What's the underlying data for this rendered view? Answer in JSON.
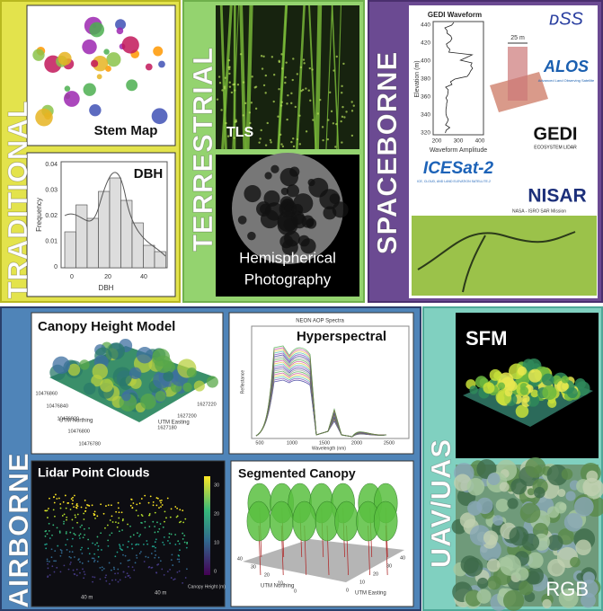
{
  "traditional": {
    "label": "TRADITIONAL",
    "stem_map": {
      "title": "Stem Map"
    },
    "dbh": {
      "title": "DBH",
      "y_label": "Frequency",
      "x_label": "DBH",
      "yticks": [
        "0.04",
        "0.03",
        "0.02",
        "0.01",
        "0"
      ],
      "xticks": [
        "0",
        "20",
        "40"
      ]
    }
  },
  "terrestrial": {
    "label": "TERRESTRIAL",
    "tls": "TLS",
    "hemi": [
      "Hemispherical",
      "Photography"
    ]
  },
  "spaceborne": {
    "label": "SPACEBORNE",
    "gedi_plot": {
      "title": "GEDI Waveform",
      "y_label": "Elevation (m)",
      "x_label": "Waveform Amplitude",
      "yticks": [
        "440",
        "420",
        "400",
        "380",
        "360",
        "340",
        "320"
      ],
      "xticks": [
        "200",
        "300",
        "400"
      ],
      "scale": "25 m"
    },
    "logos": {
      "alos": "ALOS",
      "alos_sub": "Advanced Land Observing Satellite",
      "gedi": "GEDI",
      "gedi_sub": "ECOSYSTEM LIDAR",
      "icesat": "ICESat-2",
      "icesat_sub": "ICE, CLOUD, AND LAND ELEVATION SATELLITE-2",
      "nisar": "NISAR",
      "nisar_sub": "NASA - ISRO SAR Mission"
    }
  },
  "airborne": {
    "label": "AIRBORNE",
    "chm": {
      "title": "Canopy Height Model",
      "northing_ticks": [
        "10476860",
        "10476840",
        "10476820",
        "10476800",
        "10476780"
      ],
      "northing_label": "UTM Northing",
      "easting_ticks": [
        "1627220",
        "1627200",
        "1627180"
      ],
      "easting_label": "UTM Easting"
    },
    "hyper": {
      "title": "Hyperspectral",
      "subtitle": "NEON AOP Spectra",
      "y_label": "Reflectance",
      "x_label": "Wavelength (nm)",
      "xticks": [
        "500",
        "1000",
        "1500",
        "2000",
        "2500"
      ]
    },
    "lidar": {
      "title": "Lidar Point Clouds",
      "dist": [
        "40 m",
        "40 m"
      ],
      "bar_label": "Canopy Height (m)",
      "bar_ticks": [
        "30",
        "20",
        "10",
        "0"
      ]
    },
    "seg": {
      "title": "Segmented Canopy",
      "northing_label": "UTM Northing",
      "easting_label": "UTM Easting",
      "n_ticks": [
        "40",
        "30",
        "20",
        "10",
        "0"
      ],
      "e_ticks": [
        "0",
        "10",
        "20",
        "30",
        "40"
      ]
    }
  },
  "uav": {
    "label": "UAV/UAS",
    "sfm": "SFM",
    "rgb": "RGB"
  }
}
